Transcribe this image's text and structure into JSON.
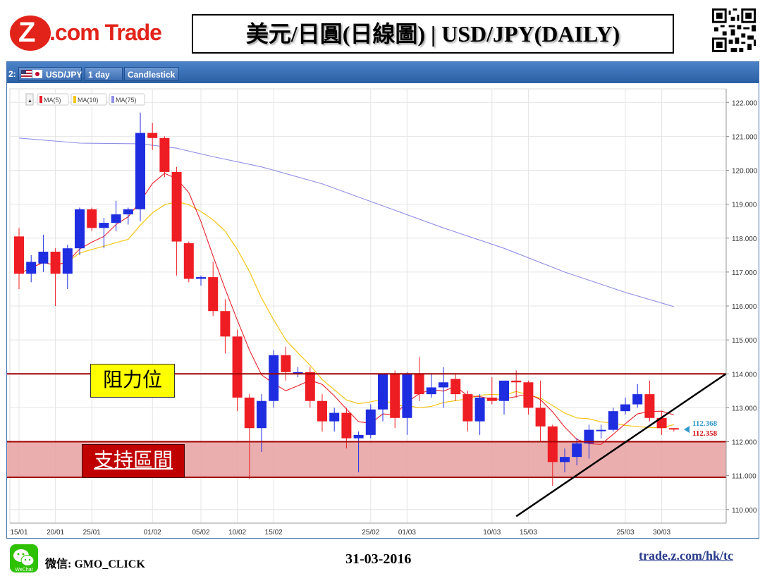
{
  "header": {
    "logo_letter": "Z",
    "logo_text": ".com Trade",
    "title": "美元/日圓(日線圖) | USD/JPY(DAILY)"
  },
  "toolbar": {
    "window_index": "2:",
    "symbol": "USD/JPY",
    "interval": "1 day",
    "chart_style": "Candlestick"
  },
  "legend": {
    "collapse_symbol": "▲",
    "items": [
      {
        "label": "MA(5)",
        "color": "#e8202a"
      },
      {
        "label": "MA(10)",
        "color": "#f5c518"
      },
      {
        "label": "MA(75)",
        "color": "#8f8fe8"
      }
    ]
  },
  "annotations": {
    "resistance_label": "阻力位",
    "support_label": "支持區間",
    "last_price_blue": "112.368",
    "last_price_red": "112.358"
  },
  "colors": {
    "up": "#1f2de0",
    "down": "#ee1d23",
    "accent": "#c00000"
  },
  "chart_data": {
    "type": "candlestick",
    "title": "",
    "xlabel": "",
    "ylabel": "",
    "ylim": [
      109.6,
      122.4
    ],
    "yticks": [
      "110.000",
      "111.000",
      "112.000",
      "113.000",
      "114.000",
      "115.000",
      "116.000",
      "117.000",
      "118.000",
      "119.000",
      "120.000",
      "121.000",
      "122.000"
    ],
    "xtick_labels": [
      {
        "label": "15/01",
        "index": 0
      },
      {
        "label": "20/01",
        "index": 3
      },
      {
        "label": "25/01",
        "index": 6
      },
      {
        "label": "01/02",
        "index": 11
      },
      {
        "label": "05/02",
        "index": 15
      },
      {
        "label": "10/02",
        "index": 18
      },
      {
        "label": "15/02",
        "index": 21
      },
      {
        "label": "25/02",
        "index": 29
      },
      {
        "label": "01/03",
        "index": 32
      },
      {
        "label": "10/03",
        "index": 39
      },
      {
        "label": "15/03",
        "index": 42
      },
      {
        "label": "25/03",
        "index": 50
      },
      {
        "label": "30/03",
        "index": 53
      }
    ],
    "candles": [
      {
        "o": 118.05,
        "h": 118.3,
        "l": 116.5,
        "c": 116.95
      },
      {
        "o": 116.95,
        "h": 117.5,
        "l": 116.7,
        "c": 117.3
      },
      {
        "o": 117.25,
        "h": 118.1,
        "l": 117.0,
        "c": 117.6
      },
      {
        "o": 117.6,
        "h": 117.7,
        "l": 116.0,
        "c": 116.95
      },
      {
        "o": 116.95,
        "h": 117.8,
        "l": 116.5,
        "c": 117.7
      },
      {
        "o": 117.7,
        "h": 118.9,
        "l": 117.5,
        "c": 118.85
      },
      {
        "o": 118.85,
        "h": 118.9,
        "l": 118.2,
        "c": 118.3
      },
      {
        "o": 118.3,
        "h": 118.6,
        "l": 117.7,
        "c": 118.45
      },
      {
        "o": 118.45,
        "h": 119.1,
        "l": 118.2,
        "c": 118.7
      },
      {
        "o": 118.7,
        "h": 118.9,
        "l": 118.4,
        "c": 118.85
      },
      {
        "o": 118.85,
        "h": 121.7,
        "l": 118.5,
        "c": 121.1
      },
      {
        "o": 121.1,
        "h": 121.4,
        "l": 120.6,
        "c": 120.95
      },
      {
        "o": 120.95,
        "h": 121.0,
        "l": 119.8,
        "c": 119.95
      },
      {
        "o": 119.95,
        "h": 120.1,
        "l": 116.9,
        "c": 117.9
      },
      {
        "o": 117.85,
        "h": 117.9,
        "l": 116.7,
        "c": 116.8
      },
      {
        "o": 116.8,
        "h": 116.9,
        "l": 116.6,
        "c": 116.85
      },
      {
        "o": 116.85,
        "h": 117.3,
        "l": 115.7,
        "c": 115.85
      },
      {
        "o": 115.85,
        "h": 116.2,
        "l": 114.6,
        "c": 115.1
      },
      {
        "o": 115.1,
        "h": 115.3,
        "l": 112.9,
        "c": 113.3
      },
      {
        "o": 113.3,
        "h": 113.4,
        "l": 110.9,
        "c": 112.4
      },
      {
        "o": 112.4,
        "h": 113.4,
        "l": 111.7,
        "c": 113.2
      },
      {
        "o": 113.2,
        "h": 114.7,
        "l": 113.0,
        "c": 114.55
      },
      {
        "o": 114.55,
        "h": 114.8,
        "l": 113.8,
        "c": 114.05
      },
      {
        "o": 114.05,
        "h": 114.2,
        "l": 113.9,
        "c": 114.05
      },
      {
        "o": 114.05,
        "h": 114.2,
        "l": 113.0,
        "c": 113.2
      },
      {
        "o": 113.2,
        "h": 113.4,
        "l": 112.3,
        "c": 112.6
      },
      {
        "o": 112.6,
        "h": 113.0,
        "l": 112.3,
        "c": 112.85
      },
      {
        "o": 112.85,
        "h": 113.0,
        "l": 111.8,
        "c": 112.1
      },
      {
        "o": 112.1,
        "h": 112.3,
        "l": 111.1,
        "c": 112.2
      },
      {
        "o": 112.2,
        "h": 113.1,
        "l": 112.1,
        "c": 112.95
      },
      {
        "o": 112.95,
        "h": 114.0,
        "l": 112.6,
        "c": 114.0
      },
      {
        "o": 114.0,
        "h": 114.1,
        "l": 112.4,
        "c": 112.7
      },
      {
        "o": 112.7,
        "h": 114.05,
        "l": 112.2,
        "c": 114.0
      },
      {
        "o": 114.0,
        "h": 114.5,
        "l": 113.2,
        "c": 113.4
      },
      {
        "o": 113.4,
        "h": 114.0,
        "l": 113.3,
        "c": 113.6
      },
      {
        "o": 113.6,
        "h": 114.2,
        "l": 113.0,
        "c": 113.75
      },
      {
        "o": 113.85,
        "h": 114.0,
        "l": 113.2,
        "c": 113.4
      },
      {
        "o": 113.4,
        "h": 113.5,
        "l": 112.3,
        "c": 112.6
      },
      {
        "o": 112.6,
        "h": 113.4,
        "l": 112.2,
        "c": 113.3
      },
      {
        "o": 113.3,
        "h": 113.9,
        "l": 113.1,
        "c": 113.2
      },
      {
        "o": 113.2,
        "h": 113.8,
        "l": 112.8,
        "c": 113.8
      },
      {
        "o": 113.8,
        "h": 114.1,
        "l": 113.3,
        "c": 113.75
      },
      {
        "o": 113.75,
        "h": 113.8,
        "l": 112.8,
        "c": 113.0
      },
      {
        "o": 113.0,
        "h": 113.8,
        "l": 112.0,
        "c": 112.45
      },
      {
        "o": 112.45,
        "h": 112.5,
        "l": 110.7,
        "c": 111.4
      },
      {
        "o": 111.4,
        "h": 111.8,
        "l": 111.1,
        "c": 111.55
      },
      {
        "o": 111.55,
        "h": 112.1,
        "l": 111.3,
        "c": 111.95
      },
      {
        "o": 111.95,
        "h": 112.5,
        "l": 111.5,
        "c": 112.35
      },
      {
        "o": 112.35,
        "h": 112.5,
        "l": 112.1,
        "c": 112.35
      },
      {
        "o": 112.35,
        "h": 113.0,
        "l": 112.3,
        "c": 112.9
      },
      {
        "o": 112.9,
        "h": 113.3,
        "l": 112.8,
        "c": 113.1
      },
      {
        "o": 113.1,
        "h": 113.7,
        "l": 113.0,
        "c": 113.4
      },
      {
        "o": 113.4,
        "h": 113.8,
        "l": 112.6,
        "c": 112.7
      },
      {
        "o": 112.7,
        "h": 112.9,
        "l": 112.2,
        "c": 112.4
      },
      {
        "o": 112.4,
        "h": 112.4,
        "l": 112.3,
        "c": 112.36
      }
    ],
    "ma75": [
      {
        "i": 0,
        "v": 120.95
      },
      {
        "i": 5,
        "v": 120.8
      },
      {
        "i": 10,
        "v": 120.78
      },
      {
        "i": 13,
        "v": 120.65
      },
      {
        "i": 16,
        "v": 120.4
      },
      {
        "i": 20,
        "v": 120.1
      },
      {
        "i": 25,
        "v": 119.6
      },
      {
        "i": 30,
        "v": 118.95
      },
      {
        "i": 35,
        "v": 118.3
      },
      {
        "i": 40,
        "v": 117.7
      },
      {
        "i": 45,
        "v": 117.0
      },
      {
        "i": 50,
        "v": 116.4
      },
      {
        "i": 54,
        "v": 115.98
      }
    ],
    "horizontal_lines": [
      {
        "name": "resistance",
        "y": 114.0
      },
      {
        "name": "support_top",
        "y": 112.0
      },
      {
        "name": "support_bottom",
        "y": 110.95
      }
    ],
    "support_zone": [
      110.95,
      112.0
    ],
    "trendline": {
      "x_from": 41,
      "y_from": 109.8,
      "x_to": 58.3,
      "y_to": 114.0
    }
  },
  "footer": {
    "wechat_badge": "WeChat",
    "wechat_label": "微信: GMO_CLICK",
    "date": "31-03-2016",
    "url": "trade.z.com/hk/tc"
  }
}
